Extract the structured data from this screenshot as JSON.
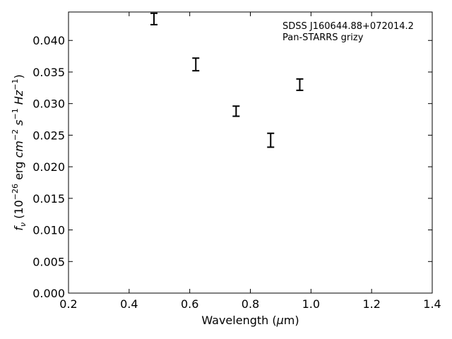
{
  "chart_data": {
    "type": "scatter",
    "title": "",
    "xlabel_prefix": "Wavelength (",
    "xlabel_mu": "μ",
    "xlabel_suffix": "m)",
    "ylabel_prefix": "f",
    "ylabel_sub": "ν",
    "ylabel_mid1": " (10",
    "ylabel_exp1": "−26",
    "ylabel_mid2": " erg ",
    "ylabel_cm": "cm",
    "ylabel_exp2": "−2",
    "ylabel_s": " s",
    "ylabel_exp3": "−1",
    "ylabel_hz": " Hz",
    "ylabel_exp4": "−1",
    "ylabel_end": ")",
    "xlim": [
      0.2,
      1.4
    ],
    "ylim": [
      0.0,
      0.0445
    ],
    "xticks": [
      0.2,
      0.4,
      0.6,
      0.8,
      1.0,
      1.2,
      1.4
    ],
    "xtick_labels": [
      "0.2",
      "0.4",
      "0.6",
      "0.8",
      "1.0",
      "1.2",
      "1.4"
    ],
    "yticks": [
      0.0,
      0.005,
      0.01,
      0.015,
      0.02,
      0.025,
      0.03,
      0.035,
      0.04
    ],
    "ytick_labels": [
      "0.000",
      "0.005",
      "0.010",
      "0.015",
      "0.020",
      "0.025",
      "0.030",
      "0.035",
      "0.040"
    ],
    "grid": false,
    "annotation_lines": [
      "SDSS J160644.88+072014.2",
      "Pan-STARRS grizy"
    ],
    "annotation_position": "top-right",
    "points": [
      {
        "x": 0.482,
        "y": 0.0434,
        "yerr": 0.0009
      },
      {
        "x": 0.62,
        "y": 0.0362,
        "yerr": 0.001
      },
      {
        "x": 0.753,
        "y": 0.0288,
        "yerr": 0.0008
      },
      {
        "x": 0.867,
        "y": 0.0242,
        "yerr": 0.0011
      },
      {
        "x": 0.963,
        "y": 0.033,
        "yerr": 0.0009
      }
    ]
  }
}
